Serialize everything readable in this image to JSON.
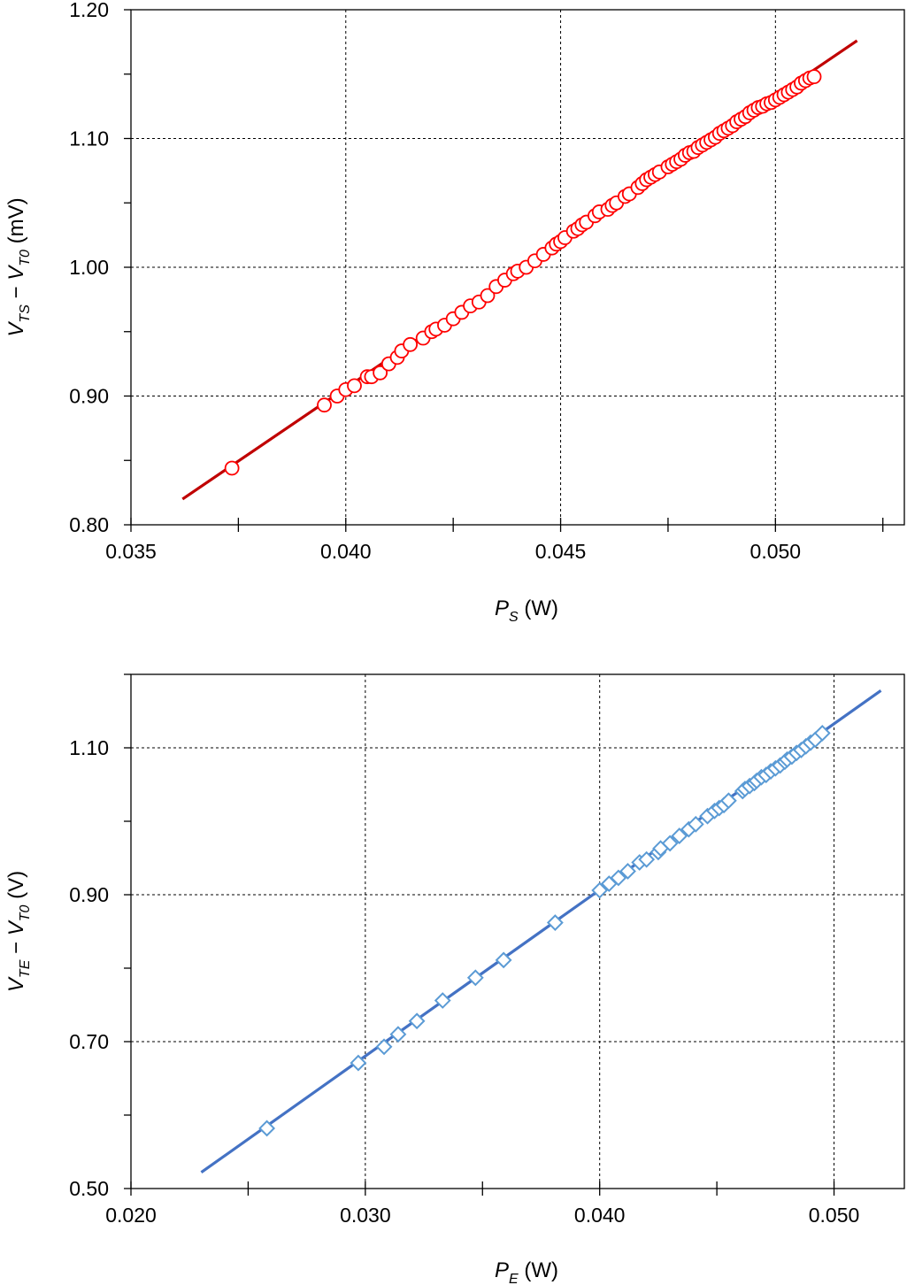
{
  "chart_data": [
    {
      "type": "scatter",
      "id": "top",
      "title": "",
      "xlabel": {
        "main": "P",
        "sub": "S",
        "unit": " (W)"
      },
      "ylabel": {
        "v1": "V",
        "s1": "TS",
        "dash": " − ",
        "v2": "V",
        "s2": "T0",
        "unit": " (mV)"
      },
      "xlim": [
        0.035,
        0.053
      ],
      "ylim": [
        0.8,
        1.2
      ],
      "xticks": [
        0.035,
        0.04,
        0.045,
        0.05
      ],
      "xtick_labels": [
        "0.035",
        "0.040",
        "0.045",
        "0.050"
      ],
      "yticks": [
        0.8,
        0.9,
        1.0,
        1.1,
        1.2
      ],
      "ytick_labels": [
        "0.80",
        "0.90",
        "1.00",
        "1.10",
        "1.20"
      ],
      "grid": true,
      "marker": "circle",
      "marker_color": "#ff0000",
      "line_color": "#c00000",
      "fit_line": {
        "x": [
          0.0362,
          0.0519
        ],
        "y": [
          0.82,
          1.176
        ]
      },
      "points": {
        "x": [
          0.03735,
          0.0395,
          0.0398,
          0.04,
          0.0402,
          0.0405,
          0.0406,
          0.0408,
          0.041,
          0.0412,
          0.0413,
          0.0415,
          0.0418,
          0.042,
          0.0421,
          0.0423,
          0.0425,
          0.0427,
          0.0429,
          0.0431,
          0.0433,
          0.0435,
          0.0437,
          0.0439,
          0.044,
          0.0442,
          0.0444,
          0.0446,
          0.0448,
          0.0449,
          0.045,
          0.0451,
          0.0453,
          0.0454,
          0.0455,
          0.0456,
          0.0458,
          0.0459,
          0.0461,
          0.0462,
          0.0463,
          0.0465,
          0.0466,
          0.0468,
          0.0469,
          0.047,
          0.0471,
          0.0472,
          0.0473,
          0.0475,
          0.0476,
          0.0477,
          0.0478,
          0.0479,
          0.048,
          0.0481,
          0.0482,
          0.0483,
          0.0484,
          0.0485,
          0.0486,
          0.0487,
          0.0488,
          0.0489,
          0.049,
          0.0491,
          0.0492,
          0.0493,
          0.0494,
          0.0495,
          0.0496,
          0.0497,
          0.0498,
          0.0499,
          0.05,
          0.0501,
          0.0502,
          0.0503,
          0.0504,
          0.0505,
          0.0506,
          0.0507,
          0.0508,
          0.0509
        ],
        "y": [
          0.844,
          0.893,
          0.9,
          0.905,
          0.908,
          0.915,
          0.915,
          0.918,
          0.925,
          0.93,
          0.935,
          0.94,
          0.945,
          0.95,
          0.952,
          0.955,
          0.96,
          0.965,
          0.97,
          0.973,
          0.978,
          0.985,
          0.99,
          0.995,
          0.997,
          1.0,
          1.005,
          1.01,
          1.015,
          1.018,
          1.02,
          1.023,
          1.028,
          1.03,
          1.033,
          1.035,
          1.04,
          1.043,
          1.045,
          1.048,
          1.05,
          1.055,
          1.057,
          1.062,
          1.065,
          1.068,
          1.07,
          1.072,
          1.074,
          1.078,
          1.08,
          1.082,
          1.084,
          1.087,
          1.089,
          1.09,
          1.093,
          1.095,
          1.097,
          1.099,
          1.101,
          1.104,
          1.106,
          1.108,
          1.11,
          1.113,
          1.115,
          1.117,
          1.12,
          1.122,
          1.124,
          1.125,
          1.127,
          1.128,
          1.13,
          1.132,
          1.134,
          1.136,
          1.138,
          1.14,
          1.143,
          1.145,
          1.147,
          1.148
        ]
      }
    },
    {
      "type": "scatter",
      "id": "bottom",
      "title": "",
      "xlabel": {
        "main": "P",
        "sub": "E",
        "unit": " (W)"
      },
      "ylabel": {
        "v1": "V",
        "s1": "TE",
        "dash": " − ",
        "v2": "V",
        "s2": "T0",
        "unit": " (V)"
      },
      "xlim": [
        0.02,
        0.053
      ],
      "ylim": [
        0.5,
        1.2
      ],
      "xticks": [
        0.02,
        0.03,
        0.04,
        0.05
      ],
      "xtick_labels": [
        "0.020",
        "0.030",
        "0.040",
        "0.050"
      ],
      "yticks": [
        0.5,
        0.7,
        0.9,
        1.1
      ],
      "ytick_labels": [
        "0.50",
        "0.70",
        "0.90",
        "1.10"
      ],
      "grid": true,
      "marker": "diamond",
      "marker_color": "#5b9bd5",
      "line_color": "#4472c4",
      "fit_line": {
        "x": [
          0.023,
          0.052
        ],
        "y": [
          0.522,
          1.178
        ]
      },
      "points": {
        "x": [
          0.0258,
          0.0297,
          0.0308,
          0.0314,
          0.0322,
          0.0333,
          0.0347,
          0.0359,
          0.0381,
          0.04,
          0.0404,
          0.0408,
          0.0412,
          0.0417,
          0.042,
          0.0425,
          0.0426,
          0.043,
          0.0434,
          0.0438,
          0.0441,
          0.0446,
          0.0449,
          0.0451,
          0.0453,
          0.0455,
          0.0461,
          0.0462,
          0.0464,
          0.0466,
          0.0467,
          0.0469,
          0.0471,
          0.0473,
          0.0475,
          0.0477,
          0.0479,
          0.048,
          0.0482,
          0.0484,
          0.0486,
          0.0488,
          0.049,
          0.0492,
          0.0495
        ],
        "y": [
          0.582,
          0.671,
          0.693,
          0.71,
          0.728,
          0.756,
          0.787,
          0.811,
          0.862,
          0.906,
          0.915,
          0.923,
          0.932,
          0.944,
          0.948,
          0.958,
          0.963,
          0.97,
          0.98,
          0.989,
          0.996,
          1.007,
          1.014,
          1.018,
          1.022,
          1.028,
          1.041,
          1.044,
          1.048,
          1.052,
          1.055,
          1.06,
          1.063,
          1.068,
          1.072,
          1.076,
          1.081,
          1.084,
          1.088,
          1.093,
          1.097,
          1.102,
          1.107,
          1.111,
          1.12
        ]
      }
    }
  ]
}
